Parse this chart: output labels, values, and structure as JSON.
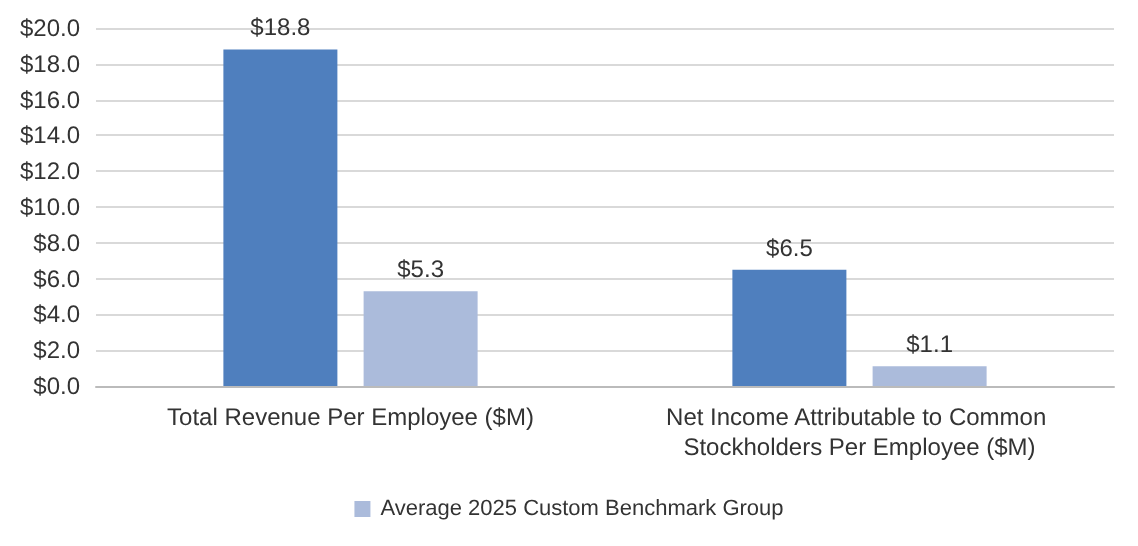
{
  "chart_data": {
    "type": "bar",
    "categories": [
      "Total Revenue Per Employee ($M)",
      "Net Income Attributable to Common Stockholders Per Employee ($M)"
    ],
    "series": [
      {
        "color": "#4f7fbe",
        "values": [
          18.8,
          6.5
        ],
        "value_labels": [
          "$18.8",
          "$6.5"
        ]
      },
      {
        "name": "Average 2025 Custom Benchmark Group",
        "color": "#abbbdb",
        "values": [
          5.3,
          1.1
        ],
        "value_labels": [
          "$5.3",
          "$1.1"
        ]
      }
    ],
    "ylim": [
      0,
      20
    ],
    "yticks": [
      {
        "value": 0,
        "label": "$0.0"
      },
      {
        "value": 2,
        "label": "$2.0"
      },
      {
        "value": 4,
        "label": "$4.0"
      },
      {
        "value": 6,
        "label": "$6.0"
      },
      {
        "value": 8,
        "label": "$8.0"
      },
      {
        "value": 10,
        "label": "$10.0"
      },
      {
        "value": 12,
        "label": "$12.0"
      },
      {
        "value": 14,
        "label": "$14.0"
      },
      {
        "value": 16,
        "label": "$16.0"
      },
      {
        "value": 18,
        "label": "$18.0"
      },
      {
        "value": 20,
        "label": "$20.0"
      }
    ],
    "grid": "y",
    "legend": "bottom"
  }
}
